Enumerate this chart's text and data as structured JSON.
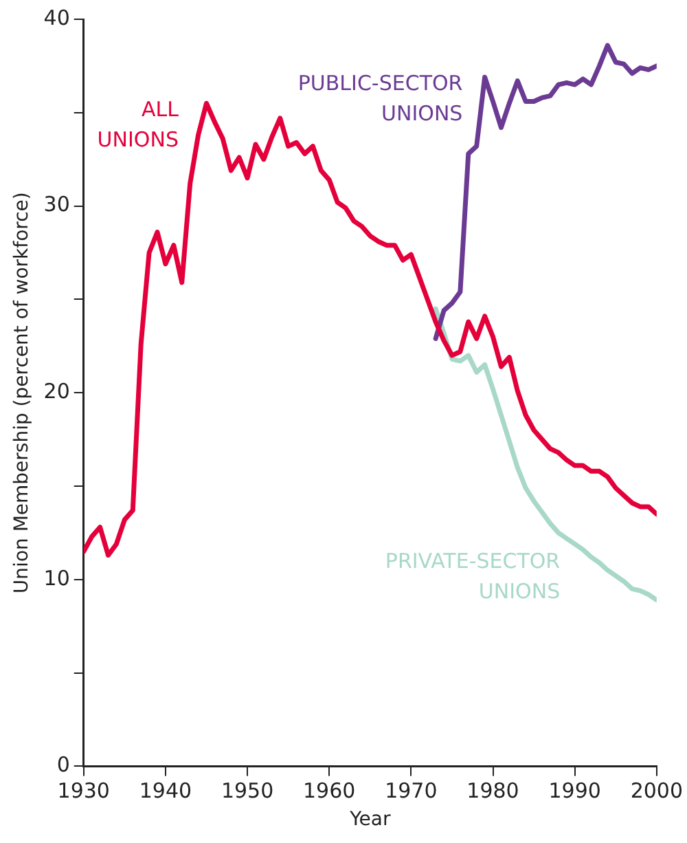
{
  "chart_data": {
    "type": "line",
    "xlabel": "Year",
    "ylabel": "Union Membership (percent of workforce)",
    "xlim": [
      1930,
      2000
    ],
    "xticks": [
      1930,
      1940,
      1950,
      1960,
      1970,
      1980,
      1990,
      2000
    ],
    "ylim": [
      0,
      40
    ],
    "yticks": [
      0,
      {
        "value": 5,
        "label": null
      },
      10,
      {
        "value": 15,
        "label": null
      },
      20,
      {
        "value": 25,
        "label": null
      },
      30,
      {
        "value": 35,
        "label": null
      },
      40
    ],
    "grid": false,
    "legend": false,
    "marker": "none",
    "line_style": "solid",
    "series": [
      {
        "name": "ALL UNIONS",
        "color": "#e4003b",
        "x": [
          1930,
          1931,
          1932,
          1933,
          1934,
          1935,
          1936,
          1937,
          1938,
          1939,
          1940,
          1941,
          1942,
          1943,
          1944,
          1945,
          1946,
          1947,
          1948,
          1949,
          1950,
          1951,
          1952,
          1953,
          1954,
          1955,
          1956,
          1957,
          1958,
          1959,
          1960,
          1961,
          1962,
          1963,
          1964,
          1965,
          1966,
          1967,
          1968,
          1969,
          1970,
          1971,
          1972,
          1973,
          1974,
          1975,
          1976,
          1977,
          1978,
          1979,
          1980,
          1981,
          1982,
          1983,
          1984,
          1985,
          1986,
          1987,
          1988,
          1989,
          1990,
          1991,
          1992,
          1993,
          1994,
          1995,
          1996,
          1997,
          1998,
          1999,
          2000
        ],
        "values": [
          11.5,
          12.3,
          12.8,
          11.3,
          11.9,
          13.2,
          13.7,
          22.6,
          27.5,
          28.6,
          26.9,
          27.9,
          25.9,
          31.2,
          33.8,
          35.5,
          34.5,
          33.6,
          31.9,
          32.6,
          31.5,
          33.3,
          32.5,
          33.7,
          34.7,
          33.2,
          33.4,
          32.8,
          33.2,
          31.9,
          31.4,
          30.2,
          29.9,
          29.2,
          28.9,
          28.4,
          28.1,
          27.9,
          27.9,
          27.1,
          27.4,
          26.2,
          25.0,
          23.8,
          22.8,
          22.0,
          22.2,
          23.8,
          22.9,
          24.1,
          23.0,
          21.4,
          21.9,
          20.1,
          18.8,
          18.0,
          17.5,
          17.0,
          16.8,
          16.4,
          16.1,
          16.1,
          15.8,
          15.8,
          15.5,
          14.9,
          14.5,
          14.1,
          13.9,
          13.9,
          13.5
        ]
      },
      {
        "name": "PUBLIC-SECTOR UNIONS",
        "color": "#6b3b94",
        "x": [
          1973,
          1974,
          1975,
          1976,
          1977,
          1978,
          1979,
          1980,
          1981,
          1982,
          1983,
          1984,
          1985,
          1986,
          1987,
          1988,
          1989,
          1990,
          1991,
          1992,
          1993,
          1994,
          1995,
          1996,
          1997,
          1998,
          1999,
          2000
        ],
        "values": [
          22.9,
          24.4,
          24.8,
          25.4,
          32.8,
          33.2,
          36.9,
          35.6,
          34.2,
          35.5,
          36.7,
          35.6,
          35.6,
          35.8,
          35.9,
          36.5,
          36.6,
          36.5,
          36.8,
          36.5,
          37.5,
          38.6,
          37.7,
          37.6,
          37.1,
          37.4,
          37.3,
          37.5
        ]
      },
      {
        "name": "PRIVATE-SECTOR UNIONS",
        "color": "#a8d8c8",
        "x": [
          1973,
          1974,
          1975,
          1976,
          1977,
          1978,
          1979,
          1980,
          1981,
          1982,
          1983,
          1984,
          1985,
          1986,
          1987,
          1988,
          1989,
          1990,
          1991,
          1992,
          1993,
          1994,
          1995,
          1996,
          1997,
          1998,
          1999,
          2000
        ],
        "values": [
          24.5,
          23.2,
          21.8,
          21.7,
          22.0,
          21.1,
          21.5,
          20.2,
          18.8,
          17.4,
          16.0,
          14.9,
          14.2,
          13.6,
          13.0,
          12.5,
          12.2,
          11.9,
          11.6,
          11.2,
          10.9,
          10.5,
          10.2,
          9.9,
          9.5,
          9.4,
          9.2,
          8.9
        ]
      }
    ]
  }
}
